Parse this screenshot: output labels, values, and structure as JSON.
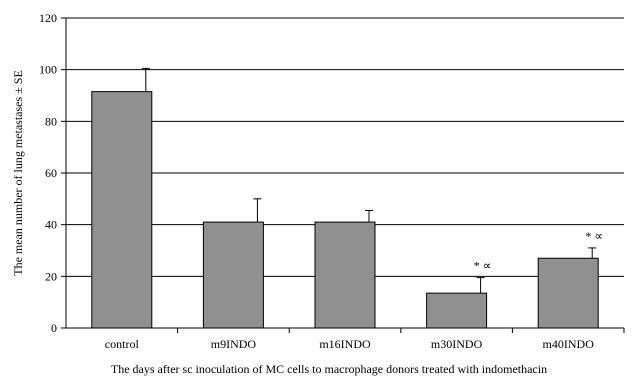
{
  "colors": {
    "bar_fill": "#909090",
    "bar_stroke": "#000000",
    "grid": "#000000",
    "background": "#ffffff"
  },
  "chart_data": {
    "type": "bar",
    "title": "",
    "xlabel": "The days after sc inoculation of MC cells to macrophage donors treated with indomethacin",
    "ylabel": "The mean number of lung metastases ± SE",
    "categories": [
      "control",
      "m9INDO",
      "m16INDO",
      "m30INDO",
      "m40INDO"
    ],
    "series": [
      {
        "values": [
          91.5,
          41,
          41,
          13.5,
          27
        ],
        "error_plus": [
          9,
          9,
          4.5,
          6,
          4
        ]
      }
    ],
    "annotations": [
      "",
      "",
      "",
      "* ∝",
      "* ∝"
    ],
    "ylim": [
      0,
      120
    ],
    "yticks": [
      0,
      20,
      40,
      60,
      80,
      100,
      120
    ],
    "grid": "horizontal",
    "legend": "none"
  }
}
